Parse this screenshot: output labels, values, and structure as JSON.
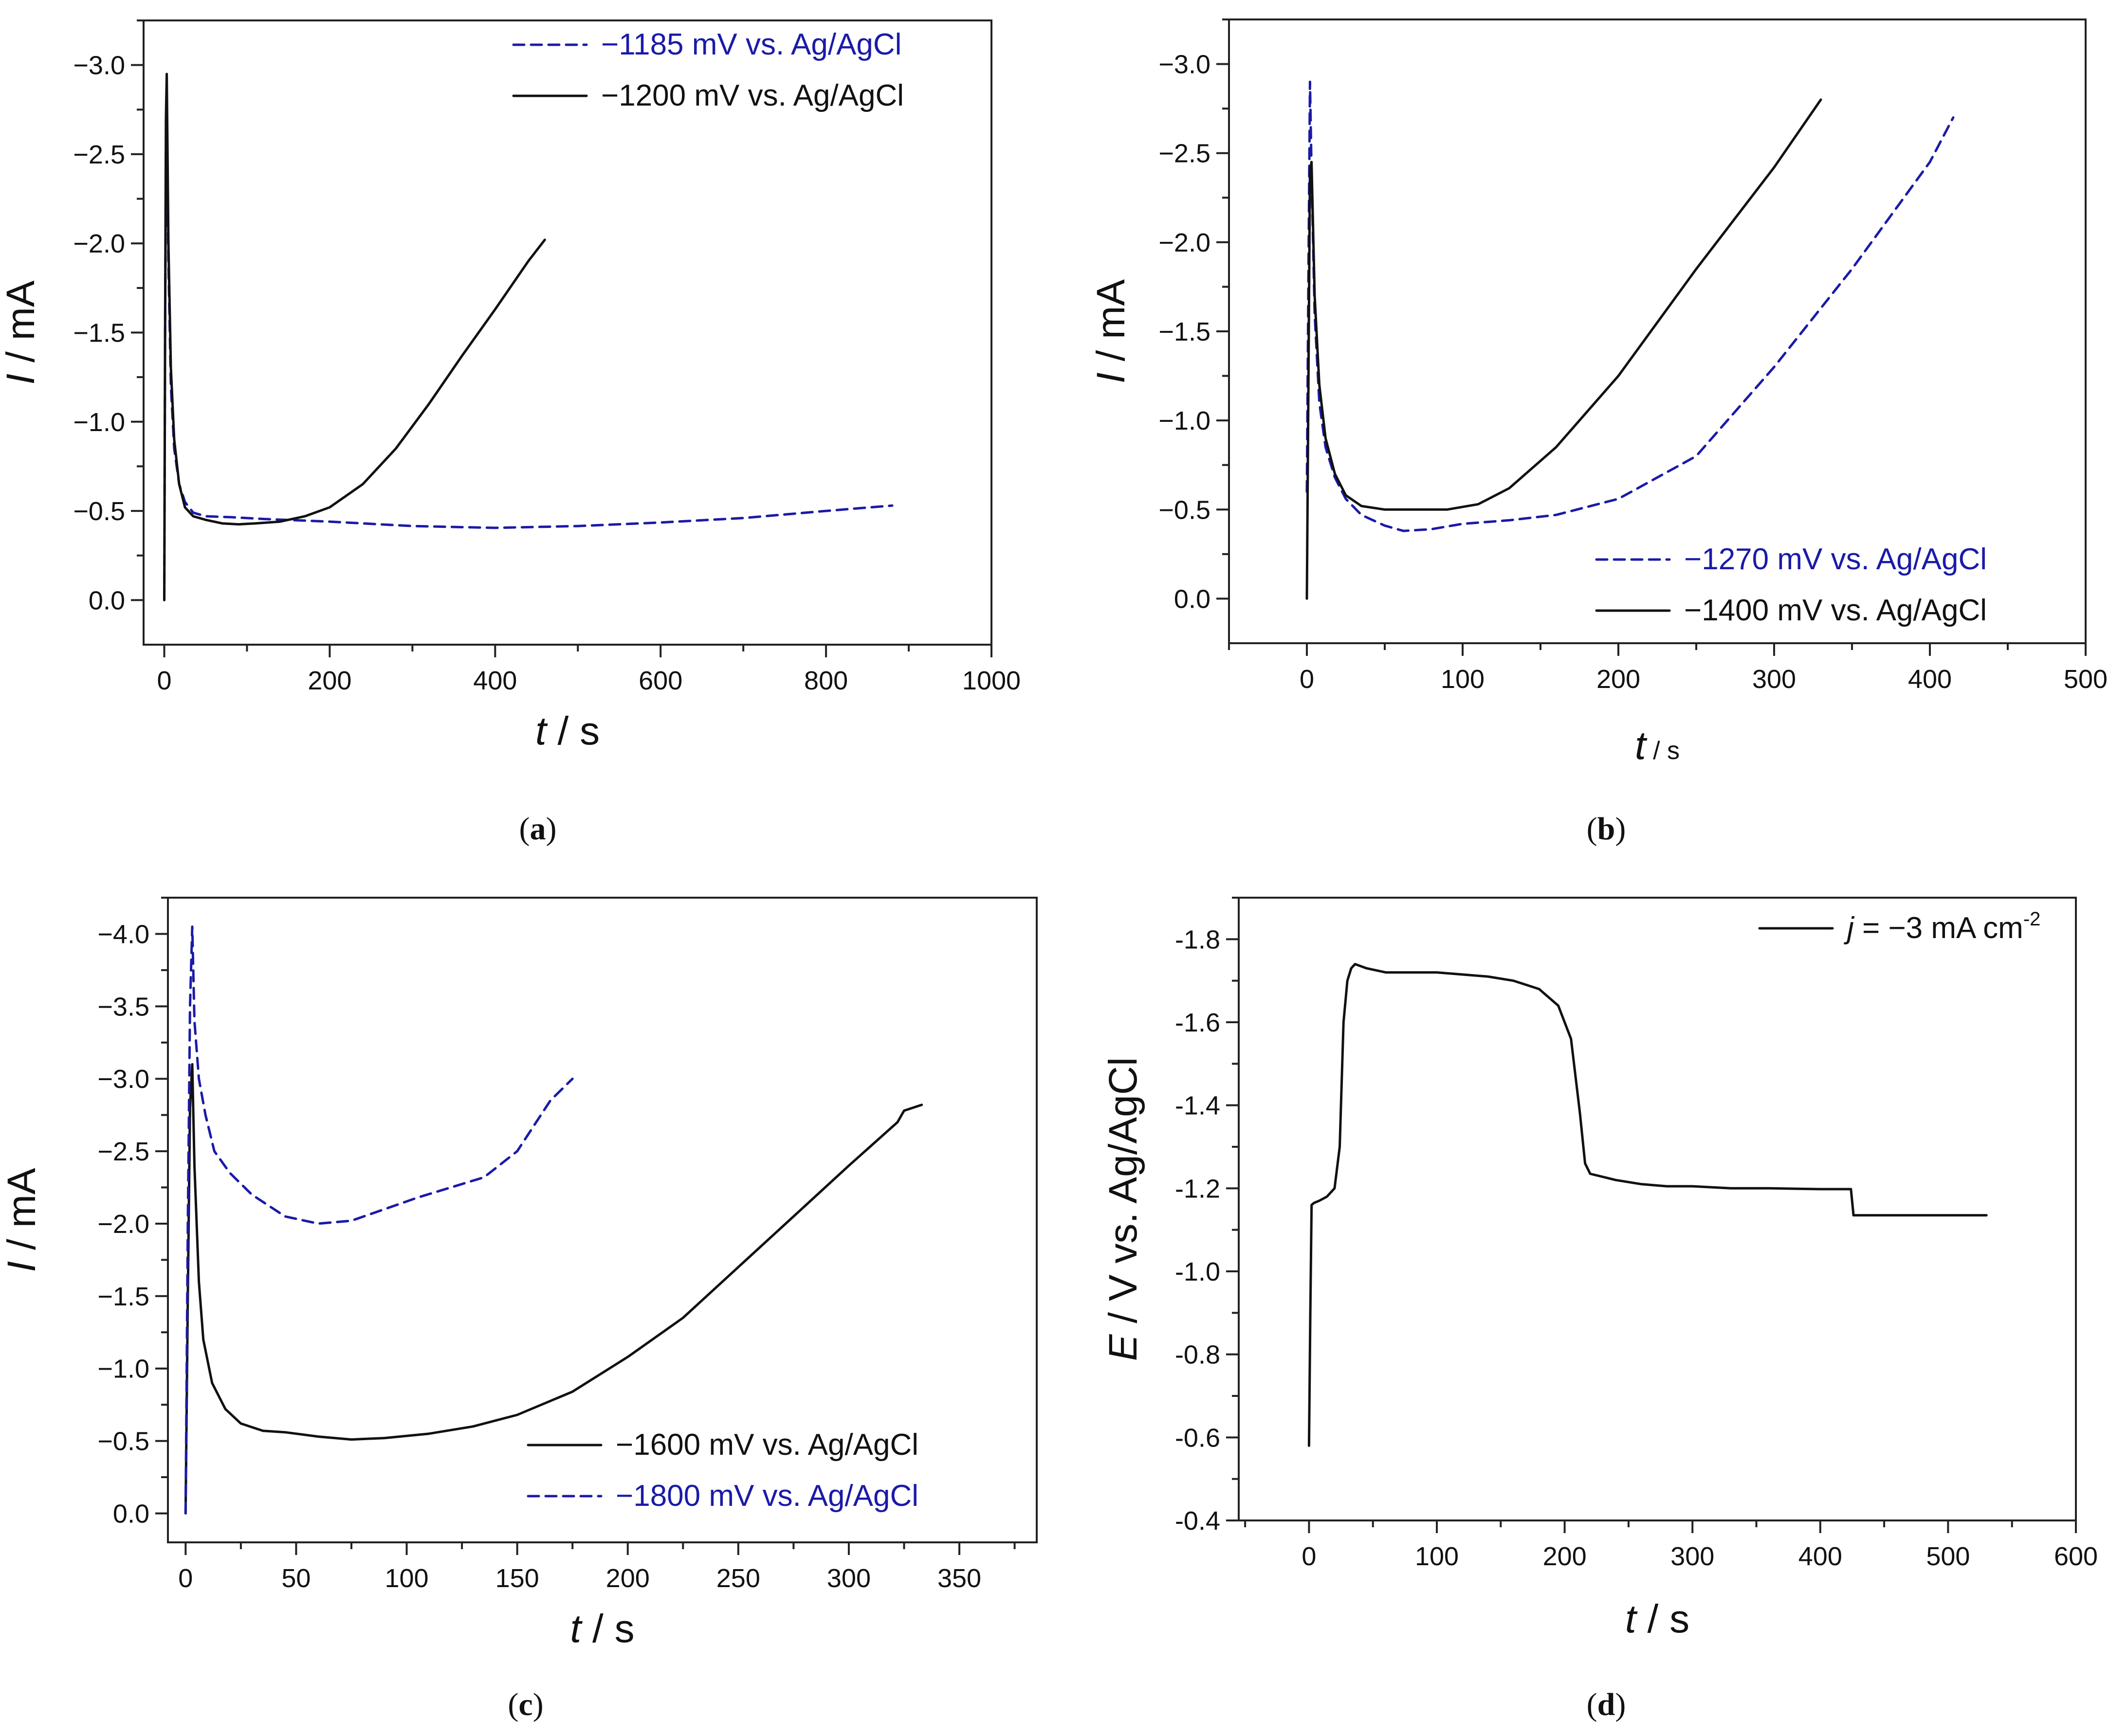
{
  "figure": {
    "panels": [
      "a",
      "b",
      "c",
      "d"
    ]
  },
  "colors": {
    "black": "#111111",
    "blue": "#1a1aa8"
  },
  "chart_data": [
    {
      "id": "a",
      "type": "line",
      "panel_label": "a",
      "xlabel": {
        "var": "t",
        "unit": " / s"
      },
      "ylabel": {
        "var": "I",
        "unit": " / mA"
      },
      "xlim": [
        -25,
        1000
      ],
      "ylim": [
        0.25,
        -3.25
      ],
      "xticks": [
        0,
        200,
        400,
        600,
        800,
        1000
      ],
      "xtick_labels": [
        "0",
        "200",
        "400",
        "600",
        "800",
        "1000"
      ],
      "yticks": [
        0.0,
        -0.5,
        -1.0,
        -1.5,
        -2.0,
        -2.5,
        -3.0
      ],
      "ytick_labels": [
        "0.0",
        "−0.5",
        "−1.0",
        "−1.5",
        "−2.0",
        "−2.5",
        "−3.0"
      ],
      "legend_position": "top-right",
      "series": [
        {
          "name": "−1185 mV vs. Ag/AgCl",
          "color": "blue",
          "dash": "dashed",
          "x": [
            0,
            1,
            2,
            3,
            5,
            8,
            12,
            18,
            25,
            35,
            50,
            80,
            120,
            200,
            300,
            400,
            500,
            600,
            700,
            800,
            880
          ],
          "y": [
            0.0,
            -1.5,
            -2.5,
            -2.6,
            -1.9,
            -1.2,
            -0.85,
            -0.65,
            -0.55,
            -0.49,
            -0.47,
            -0.465,
            -0.455,
            -0.44,
            -0.415,
            -0.405,
            -0.415,
            -0.435,
            -0.46,
            -0.5,
            -0.53
          ]
        },
        {
          "name": "−1200 mV vs. Ag/AgCl",
          "color": "black",
          "dash": "solid",
          "x": [
            0,
            1,
            2,
            3,
            5,
            8,
            12,
            18,
            25,
            35,
            50,
            70,
            90,
            110,
            140,
            170,
            200,
            240,
            280,
            320,
            360,
            400,
            440,
            460
          ],
          "y": [
            0.0,
            -1.5,
            -2.7,
            -2.95,
            -2.0,
            -1.3,
            -0.9,
            -0.65,
            -0.52,
            -0.47,
            -0.45,
            -0.43,
            -0.425,
            -0.43,
            -0.44,
            -0.47,
            -0.52,
            -0.65,
            -0.85,
            -1.1,
            -1.37,
            -1.63,
            -1.9,
            -2.02
          ]
        }
      ]
    },
    {
      "id": "b",
      "type": "line",
      "panel_label": "b",
      "xlabel": {
        "var": "t",
        "unit": " / s"
      },
      "ylabel": {
        "var": "I",
        "unit": " / mA"
      },
      "xlim": [
        -50,
        500
      ],
      "ylim": [
        0.25,
        -3.25
      ],
      "xticks": [
        0,
        100,
        200,
        300,
        400,
        500
      ],
      "xtick_labels": [
        "0",
        "100",
        "200",
        "300",
        "400",
        "500"
      ],
      "yticks": [
        0.0,
        -0.5,
        -1.0,
        -1.5,
        -2.0,
        -2.5,
        -3.0
      ],
      "ytick_labels": [
        "0.0",
        "−0.5",
        "−1.0",
        "−1.5",
        "−2.0",
        "−2.5",
        "−3.0"
      ],
      "legend_position": "bottom-right",
      "series": [
        {
          "name": "−1270 mV vs. Ag/AgCl",
          "color": "blue",
          "dash": "dashed",
          "x": [
            0,
            1,
            2,
            3,
            5,
            8,
            12,
            18,
            25,
            35,
            50,
            62,
            80,
            100,
            130,
            160,
            200,
            250,
            300,
            350,
            400,
            415
          ],
          "y": [
            -0.6,
            -1.8,
            -2.9,
            -2.4,
            -1.6,
            -1.1,
            -0.85,
            -0.68,
            -0.56,
            -0.47,
            -0.41,
            -0.38,
            -0.39,
            -0.42,
            -0.44,
            -0.47,
            -0.56,
            -0.8,
            -1.3,
            -1.85,
            -2.45,
            -2.7
          ]
        },
        {
          "name": "−1400 mV vs. Ag/AgCl",
          "color": "black",
          "dash": "solid",
          "x": [
            0,
            1,
            2,
            3,
            5,
            8,
            12,
            18,
            25,
            35,
            50,
            70,
            90,
            110,
            130,
            160,
            200,
            250,
            300,
            330
          ],
          "y": [
            0.0,
            -1.2,
            -2.4,
            -2.45,
            -1.7,
            -1.2,
            -0.9,
            -0.7,
            -0.58,
            -0.52,
            -0.5,
            -0.5,
            -0.5,
            -0.53,
            -0.62,
            -0.85,
            -1.25,
            -1.85,
            -2.42,
            -2.8
          ]
        }
      ]
    },
    {
      "id": "c",
      "type": "line",
      "panel_label": "c",
      "xlabel": {
        "var": "t",
        "unit": " / s"
      },
      "ylabel": {
        "var": "I",
        "unit": " / mA"
      },
      "xlim": [
        -8,
        385
      ],
      "ylim": [
        0.2,
        -4.25
      ],
      "xticks": [
        0,
        50,
        100,
        150,
        200,
        250,
        300,
        350
      ],
      "xtick_labels": [
        "0",
        "50",
        "100",
        "150",
        "200",
        "250",
        "300",
        "350"
      ],
      "yticks": [
        0.0,
        -0.5,
        -1.0,
        -1.5,
        -2.0,
        -2.5,
        -3.0,
        -3.5,
        -4.0
      ],
      "ytick_labels": [
        "0.0",
        "−0.5",
        "−1.0",
        "−1.5",
        "−2.0",
        "−2.5",
        "−3.0",
        "−3.5",
        "−4.0"
      ],
      "legend_position": "bottom-right",
      "series": [
        {
          "name": "−1600 mV vs. Ag/AgCl",
          "color": "black",
          "dash": "solid",
          "x": [
            0,
            1,
            2,
            3,
            4,
            6,
            8,
            12,
            18,
            25,
            35,
            45,
            60,
            75,
            90,
            110,
            130,
            150,
            175,
            200,
            225,
            250,
            275,
            300,
            322,
            325,
            333
          ],
          "y": [
            0.0,
            -1.5,
            -2.8,
            -3.1,
            -2.4,
            -1.6,
            -1.2,
            -0.9,
            -0.72,
            -0.62,
            -0.57,
            -0.56,
            -0.53,
            -0.51,
            -0.52,
            -0.55,
            -0.6,
            -0.68,
            -0.84,
            -1.08,
            -1.35,
            -1.7,
            -2.05,
            -2.4,
            -2.7,
            -2.78,
            -2.82
          ]
        },
        {
          "name": "−1800 mV vs. Ag/AgCl",
          "color": "blue",
          "dash": "dashed",
          "x": [
            0,
            1,
            2,
            3,
            4,
            6,
            9,
            13,
            20,
            30,
            45,
            60,
            75,
            90,
            105,
            120,
            135,
            150,
            165,
            175
          ],
          "y": [
            0.0,
            -2.0,
            -3.5,
            -4.05,
            -3.4,
            -3.0,
            -2.75,
            -2.5,
            -2.35,
            -2.2,
            -2.05,
            -2.0,
            -2.02,
            -2.1,
            -2.18,
            -2.25,
            -2.32,
            -2.5,
            -2.85,
            -3.0
          ]
        }
      ]
    },
    {
      "id": "d",
      "type": "line",
      "panel_label": "d",
      "xlabel": {
        "var": "t",
        "unit": " / s"
      },
      "ylabel": {
        "var": "E",
        "unit": " / V vs. Ag/AgCl"
      },
      "xlim": [
        -55,
        600
      ],
      "ylim": [
        -0.4,
        -1.9
      ],
      "xticks": [
        0,
        100,
        200,
        300,
        400,
        500,
        600
      ],
      "xtick_labels": [
        "0",
        "100",
        "200",
        "300",
        "400",
        "500",
        "600"
      ],
      "yticks": [
        -0.4,
        -0.6,
        -0.8,
        -1.0,
        -1.2,
        -1.4,
        -1.6,
        -1.8
      ],
      "ytick_labels": [
        "-0.4",
        "-0.6",
        "-0.8",
        "-1.0",
        "-1.2",
        "-1.4",
        "-1.6",
        "-1.8"
      ],
      "legend_position": "top-right",
      "series": [
        {
          "name": "j = −3 mA cm-2",
          "legend_var": "j",
          "legend_text": " = −3 mA cm",
          "legend_sup": "-2",
          "color": "black",
          "dash": "solid",
          "x": [
            0,
            1,
            2,
            4,
            8,
            14,
            20,
            24,
            27,
            30,
            33,
            36,
            45,
            60,
            80,
            100,
            120,
            140,
            160,
            180,
            195,
            205,
            212,
            216,
            220,
            240,
            260,
            280,
            300,
            330,
            360,
            400,
            424,
            426,
            450,
            480,
            510,
            530
          ],
          "y": [
            -0.58,
            -0.9,
            -1.16,
            -1.165,
            -1.17,
            -1.18,
            -1.2,
            -1.3,
            -1.6,
            -1.7,
            -1.73,
            -1.74,
            -1.73,
            -1.72,
            -1.72,
            -1.72,
            -1.715,
            -1.71,
            -1.7,
            -1.68,
            -1.64,
            -1.56,
            -1.38,
            -1.26,
            -1.235,
            -1.22,
            -1.21,
            -1.205,
            -1.205,
            -1.2,
            -1.2,
            -1.198,
            -1.198,
            -1.135,
            -1.135,
            -1.135,
            -1.135,
            -1.135
          ]
        }
      ]
    }
  ]
}
